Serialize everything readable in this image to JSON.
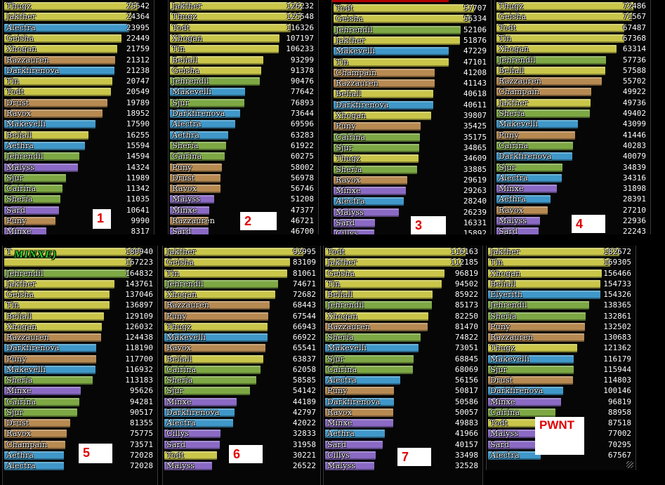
{
  "colors": {
    "yellow": "#c9c64a",
    "blue": "#3f98c9",
    "orange": "#b78a52",
    "green": "#7da844",
    "purple": "#8a6ac4",
    "bar_text": "#ffffff",
    "label_red": "#e00000"
  },
  "panels": [
    {
      "label": "1",
      "rows": [
        {
          "name": "Thugz",
          "value": "25542",
          "color": "yellow"
        },
        {
          "name": "Jakther",
          "value": "24364",
          "color": "yellow"
        },
        {
          "name": "Alectra",
          "value": "23995",
          "color": "blue"
        },
        {
          "name": "Geisha",
          "value": "22449",
          "color": "yellow"
        },
        {
          "name": "Xhogan",
          "value": "21759",
          "color": "yellow"
        },
        {
          "name": "Razzauren",
          "value": "21312",
          "color": "orange"
        },
        {
          "name": "Darkfirenova",
          "value": "21238",
          "color": "blue"
        },
        {
          "name": "Tin",
          "value": "20747",
          "color": "yellow"
        },
        {
          "name": "Todt",
          "value": "20549",
          "color": "yellow"
        },
        {
          "name": "Drust",
          "value": "19789",
          "color": "orange"
        },
        {
          "name": "Ravox",
          "value": "18952",
          "color": "orange"
        },
        {
          "name": "Makevelli",
          "value": "17590",
          "color": "blue"
        },
        {
          "name": "Beliall",
          "value": "16255",
          "color": "yellow"
        },
        {
          "name": "Aethra",
          "value": "15594",
          "color": "blue"
        },
        {
          "name": "Jehrendil",
          "value": "14594",
          "color": "green"
        },
        {
          "name": "Malyss",
          "value": "14324",
          "color": "purple"
        },
        {
          "name": "Sjur",
          "value": "11989",
          "color": "green"
        },
        {
          "name": "Cairina",
          "value": "11342",
          "color": "green"
        },
        {
          "name": "Sheria",
          "value": "11035",
          "color": "green"
        },
        {
          "name": "Sard",
          "value": "10641",
          "color": "purple"
        },
        {
          "name": "Puny",
          "value": "9990",
          "color": "orange"
        },
        {
          "name": "Minxe",
          "value": "8317",
          "color": "purple"
        }
      ]
    },
    {
      "label": "2",
      "rows": [
        {
          "name": "Jakther",
          "value": "126232",
          "color": "yellow"
        },
        {
          "name": "Thugz",
          "value": "125548",
          "color": "yellow"
        },
        {
          "name": "Todt",
          "value": "116326",
          "color": "yellow"
        },
        {
          "name": "Xhogan",
          "value": "107197",
          "color": "yellow"
        },
        {
          "name": "Tin",
          "value": "106233",
          "color": "yellow"
        },
        {
          "name": "Beliall",
          "value": "93299",
          "color": "yellow"
        },
        {
          "name": "Geisha",
          "value": "91378",
          "color": "yellow"
        },
        {
          "name": "Jehrendil",
          "value": "90476",
          "color": "green"
        },
        {
          "name": "Makevelli",
          "value": "77642",
          "color": "blue"
        },
        {
          "name": "Sjur",
          "value": "76893",
          "color": "green"
        },
        {
          "name": "Darkfirenova",
          "value": "73644",
          "color": "blue"
        },
        {
          "name": "Alectra",
          "value": "69596",
          "color": "blue"
        },
        {
          "name": "Aethra",
          "value": "63283",
          "color": "blue"
        },
        {
          "name": "Sheria",
          "value": "61922",
          "color": "green"
        },
        {
          "name": "Cairina",
          "value": "60275",
          "color": "green"
        },
        {
          "name": "Puny",
          "value": "58002",
          "color": "orange"
        },
        {
          "name": "Drust",
          "value": "56978",
          "color": "orange"
        },
        {
          "name": "Ravox",
          "value": "56746",
          "color": "orange"
        },
        {
          "name": "Malyss",
          "value": "51208",
          "color": "purple"
        },
        {
          "name": "Minxe",
          "value": "47377",
          "color": "purple"
        },
        {
          "name": "Razzauren",
          "value": "46721",
          "color": "orange"
        },
        {
          "name": "Sard",
          "value": "46700",
          "color": "purple"
        }
      ]
    },
    {
      "label": "3",
      "rows": [
        {
          "name": "Todt",
          "value": "57707",
          "color": "yellow"
        },
        {
          "name": "Geisha",
          "value": "56334",
          "color": "yellow"
        },
        {
          "name": "Jehrendil",
          "value": "52106",
          "color": "green"
        },
        {
          "name": "Jakther",
          "value": "51876",
          "color": "yellow"
        },
        {
          "name": "Makevelli",
          "value": "47229",
          "color": "blue"
        },
        {
          "name": "Tin",
          "value": "47101",
          "color": "yellow"
        },
        {
          "name": "Champain",
          "value": "41208",
          "color": "orange"
        },
        {
          "name": "Razzauren",
          "value": "41143",
          "color": "orange"
        },
        {
          "name": "Beliall",
          "value": "40618",
          "color": "yellow"
        },
        {
          "name": "Darkfirenova",
          "value": "40611",
          "color": "blue"
        },
        {
          "name": "Xhogan",
          "value": "39807",
          "color": "yellow"
        },
        {
          "name": "Puny",
          "value": "35425",
          "color": "orange"
        },
        {
          "name": "Cairina",
          "value": "35175",
          "color": "green"
        },
        {
          "name": "Sjur",
          "value": "34865",
          "color": "green"
        },
        {
          "name": "Thugz",
          "value": "34609",
          "color": "yellow"
        },
        {
          "name": "Sheria",
          "value": "33885",
          "color": "green"
        },
        {
          "name": "Ravox",
          "value": "29619",
          "color": "orange"
        },
        {
          "name": "Minxe",
          "value": "29263",
          "color": "purple"
        },
        {
          "name": "Alectra",
          "value": "28240",
          "color": "blue"
        },
        {
          "name": "Malyss",
          "value": "26239",
          "color": "purple"
        },
        {
          "name": "Sard",
          "value": "16331",
          "color": "purple"
        },
        {
          "name": "Cillys",
          "value": "15892",
          "color": "purple"
        }
      ]
    },
    {
      "label": "4",
      "rows": [
        {
          "name": "Thugz",
          "value": "72486",
          "color": "yellow"
        },
        {
          "name": "Geisha",
          "value": "71567",
          "color": "yellow"
        },
        {
          "name": "Todt",
          "value": "67487",
          "color": "yellow"
        },
        {
          "name": "Tin",
          "value": "67368",
          "color": "yellow"
        },
        {
          "name": "Xhogan",
          "value": "63314",
          "color": "yellow"
        },
        {
          "name": "Jehrendil",
          "value": "57736",
          "color": "green"
        },
        {
          "name": "Beliall",
          "value": "57588",
          "color": "yellow"
        },
        {
          "name": "Razzauren",
          "value": "55702",
          "color": "orange"
        },
        {
          "name": "Champain",
          "value": "49922",
          "color": "orange"
        },
        {
          "name": "Jakther",
          "value": "49736",
          "color": "yellow"
        },
        {
          "name": "Sheria",
          "value": "49402",
          "color": "green"
        },
        {
          "name": "Makevelli",
          "value": "43099",
          "color": "blue"
        },
        {
          "name": "Puny",
          "value": "41446",
          "color": "orange"
        },
        {
          "name": "Cairina",
          "value": "40283",
          "color": "green"
        },
        {
          "name": "Darkfirenova",
          "value": "40079",
          "color": "blue"
        },
        {
          "name": "Sjur",
          "value": "34839",
          "color": "green"
        },
        {
          "name": "Alectra",
          "value": "34316",
          "color": "blue"
        },
        {
          "name": "Minxe",
          "value": "31898",
          "color": "purple"
        },
        {
          "name": "Aethra",
          "value": "28391",
          "color": "blue"
        },
        {
          "name": "Ravox",
          "value": "27210",
          "color": "orange"
        },
        {
          "name": "Malyss",
          "value": "22936",
          "color": "purple"
        },
        {
          "name": "Sard",
          "value": "22243",
          "color": "purple"
        }
      ]
    },
    {
      "label": "5",
      "overlay": "MINXE)",
      "rows": [
        {
          "name": "T",
          "value": "180940",
          "color": "yellow"
        },
        {
          "name": "",
          "value": "167223",
          "color": "yellow"
        },
        {
          "name": "Jehrendil",
          "value": "164832",
          "color": "green"
        },
        {
          "name": "Jakther",
          "value": "143761",
          "color": "yellow"
        },
        {
          "name": "Geisha",
          "value": "137046",
          "color": "yellow"
        },
        {
          "name": "Tin",
          "value": "136897",
          "color": "yellow"
        },
        {
          "name": "Beliall",
          "value": "129109",
          "color": "yellow"
        },
        {
          "name": "Xhogan",
          "value": "126032",
          "color": "yellow"
        },
        {
          "name": "Razzauren",
          "value": "124438",
          "color": "orange"
        },
        {
          "name": "Darkfirenova",
          "value": "118190",
          "color": "blue"
        },
        {
          "name": "Puny",
          "value": "117700",
          "color": "orange"
        },
        {
          "name": "Makevelli",
          "value": "116932",
          "color": "blue"
        },
        {
          "name": "Sheria",
          "value": "113183",
          "color": "green"
        },
        {
          "name": "Minxe",
          "value": "95626",
          "color": "purple"
        },
        {
          "name": "Cairina",
          "value": "94281",
          "color": "green"
        },
        {
          "name": "Sjur",
          "value": "90517",
          "color": "green"
        },
        {
          "name": "Drust",
          "value": "81355",
          "color": "orange"
        },
        {
          "name": "Ravox",
          "value": "75775",
          "color": "orange"
        },
        {
          "name": "Champain",
          "value": "73571",
          "color": "orange"
        },
        {
          "name": "Aethra",
          "value": "72028",
          "color": "blue"
        },
        {
          "name": "Alectra",
          "value": "72028",
          "color": "blue"
        }
      ]
    },
    {
      "label": "6",
      "rows": [
        {
          "name": "Jakther",
          "value": "92995",
          "color": "yellow"
        },
        {
          "name": "Geisha",
          "value": "83109",
          "color": "yellow"
        },
        {
          "name": "Tin",
          "value": "81061",
          "color": "yellow"
        },
        {
          "name": "Jehrendil",
          "value": "74671",
          "color": "green"
        },
        {
          "name": "Xhogan",
          "value": "72682",
          "color": "yellow"
        },
        {
          "name": "Razzauren",
          "value": "68443",
          "color": "orange"
        },
        {
          "name": "Puny",
          "value": "67544",
          "color": "orange"
        },
        {
          "name": "Thugz",
          "value": "66943",
          "color": "yellow"
        },
        {
          "name": "Makevelli",
          "value": "66922",
          "color": "blue"
        },
        {
          "name": "Ravox",
          "value": "65541",
          "color": "orange"
        },
        {
          "name": "Beliall",
          "value": "63837",
          "color": "yellow"
        },
        {
          "name": "Cairina",
          "value": "62058",
          "color": "green"
        },
        {
          "name": "Sheria",
          "value": "58585",
          "color": "green"
        },
        {
          "name": "Sjur",
          "value": "54142",
          "color": "green"
        },
        {
          "name": "Minxe",
          "value": "44189",
          "color": "purple"
        },
        {
          "name": "Darkfirenova",
          "value": "42797",
          "color": "blue"
        },
        {
          "name": "Alectra",
          "value": "42022",
          "color": "blue"
        },
        {
          "name": "Cillys",
          "value": "32833",
          "color": "purple"
        },
        {
          "name": "Sard",
          "value": "31958",
          "color": "purple"
        },
        {
          "name": "Todt",
          "value": "30221",
          "color": "yellow"
        },
        {
          "name": "Malyss",
          "value": "26522",
          "color": "purple"
        }
      ]
    },
    {
      "label": "7",
      "rows": [
        {
          "name": "Todt",
          "value": "116163",
          "color": "yellow"
        },
        {
          "name": "Jakther",
          "value": "112185",
          "color": "yellow"
        },
        {
          "name": "Geisha",
          "value": "96819",
          "color": "yellow"
        },
        {
          "name": "Tin",
          "value": "94502",
          "color": "yellow"
        },
        {
          "name": "Beliall",
          "value": "85922",
          "color": "yellow"
        },
        {
          "name": "Jehrendil",
          "value": "85173",
          "color": "green"
        },
        {
          "name": "Xhogan",
          "value": "82250",
          "color": "yellow"
        },
        {
          "name": "Razzauren",
          "value": "81470",
          "color": "orange"
        },
        {
          "name": "Sheria",
          "value": "74822",
          "color": "green"
        },
        {
          "name": "Makevelli",
          "value": "73051",
          "color": "blue"
        },
        {
          "name": "Sjur",
          "value": "68845",
          "color": "green"
        },
        {
          "name": "Cairina",
          "value": "68069",
          "color": "green"
        },
        {
          "name": "Alectra",
          "value": "56156",
          "color": "blue"
        },
        {
          "name": "Puny",
          "value": "50817",
          "color": "orange"
        },
        {
          "name": "Darkfirenova",
          "value": "50586",
          "color": "blue"
        },
        {
          "name": "Ravox",
          "value": "50057",
          "color": "orange"
        },
        {
          "name": "Minxe",
          "value": "49883",
          "color": "purple"
        },
        {
          "name": "Aethra",
          "value": "41966",
          "color": "blue"
        },
        {
          "name": "Sard",
          "value": "40157",
          "color": "purple"
        },
        {
          "name": "Cillys",
          "value": "33498",
          "color": "purple"
        },
        {
          "name": "Malyss",
          "value": "32528",
          "color": "purple"
        }
      ]
    },
    {
      "label": "PWNT",
      "rows": [
        {
          "name": "Jakther",
          "value": "182672",
          "color": "yellow"
        },
        {
          "name": "Tin",
          "value": "169305",
          "color": "yellow"
        },
        {
          "name": "Xhogan",
          "value": "156466",
          "color": "yellow"
        },
        {
          "name": "Beliall",
          "value": "154733",
          "color": "yellow"
        },
        {
          "name": "Elyerith",
          "value": "154326",
          "color": "blue"
        },
        {
          "name": "Jehrendil",
          "value": "138365",
          "color": "green"
        },
        {
          "name": "Sheria",
          "value": "132861",
          "color": "green"
        },
        {
          "name": "Puny",
          "value": "132502",
          "color": "orange"
        },
        {
          "name": "Razzauren",
          "value": "130683",
          "color": "orange"
        },
        {
          "name": "Thugz",
          "value": "121362",
          "color": "yellow"
        },
        {
          "name": "Makevelli",
          "value": "116179",
          "color": "blue"
        },
        {
          "name": "Sjur",
          "value": "115944",
          "color": "green"
        },
        {
          "name": "Drust",
          "value": "114803",
          "color": "orange"
        },
        {
          "name": "Darkfirenova",
          "value": "100146",
          "color": "blue"
        },
        {
          "name": "Minxe",
          "value": "96819",
          "color": "purple"
        },
        {
          "name": "Cairina",
          "value": "88958",
          "color": "green"
        },
        {
          "name": "Todt",
          "value": "87518",
          "color": "yellow"
        },
        {
          "name": "Malyss",
          "value": "77002",
          "color": "purple"
        },
        {
          "name": "Sard",
          "value": "70295",
          "color": "purple"
        },
        {
          "name": "Alectra",
          "value": "67567",
          "color": "blue"
        }
      ]
    }
  ]
}
